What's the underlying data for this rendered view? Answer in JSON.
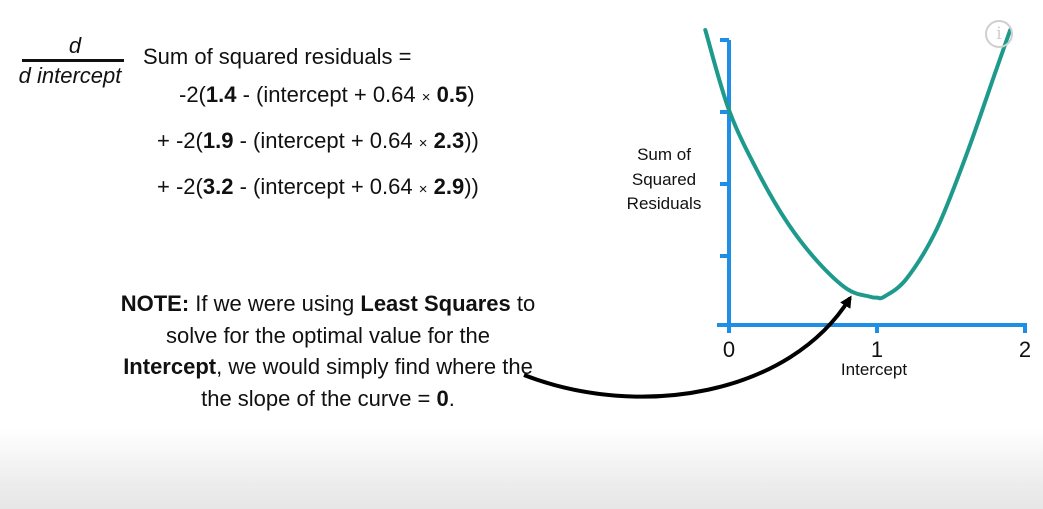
{
  "derivative": {
    "numerator": "d",
    "denominator": "d intercept"
  },
  "equation": {
    "head": "Sum of squared residuals =",
    "lines": [
      {
        "prefix": "-2(",
        "observed": "1.4",
        "mid": " - (intercept + 0.64 ",
        "times": "×",
        "x": "0.5",
        "suffix": ")"
      },
      {
        "prefix": "+ -2(",
        "observed": "1.9",
        "mid": " - (intercept + 0.64 ",
        "times": "×",
        "x": "2.3",
        "suffix": "))"
      },
      {
        "prefix": "+ -2(",
        "observed": "3.2",
        "mid": " - (intercept + 0.64 ",
        "times": "×",
        "x": "2.9",
        "suffix": "))"
      }
    ]
  },
  "note": {
    "label": "NOTE:",
    "t1": " If we were using ",
    "b1": "Least Squares",
    "t2": " to solve for the optimal value for the ",
    "b2": "Intercept",
    "t3": ", we would simply find where the the slope of the curve = ",
    "b3": "0",
    "t4": "."
  },
  "chart_data": {
    "type": "line",
    "ylabel": "Sum of Squared Residuals",
    "xlabel": "Intercept",
    "xlim": [
      0,
      2
    ],
    "x_ticks": [
      "0",
      "1",
      "2"
    ],
    "series": [
      {
        "x": [
          -0.16,
          0,
          0.2,
          0.4,
          0.6,
          0.8,
          0.95,
          1.0,
          1.05,
          1.2,
          1.4,
          1.6,
          1.8,
          1.9
        ],
        "values": [
          1.4,
          1.02,
          0.72,
          0.48,
          0.3,
          0.17,
          0.135,
          0.13,
          0.135,
          0.22,
          0.45,
          0.8,
          1.2,
          1.4
        ]
      }
    ],
    "colors": {
      "curve": "#1e9a8c",
      "axes": "#1f8fe6",
      "arrow": "#000000"
    }
  }
}
